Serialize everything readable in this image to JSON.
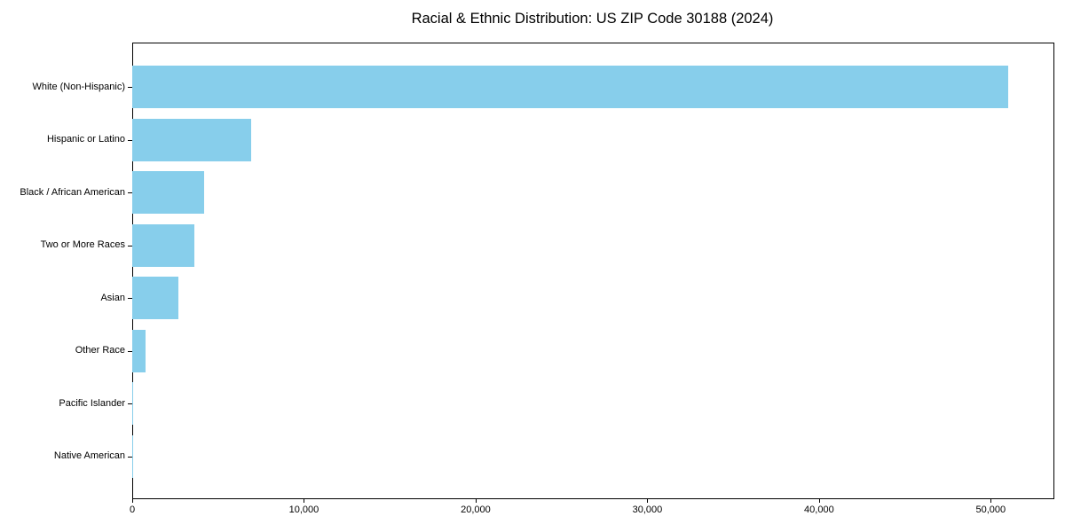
{
  "title": "Racial & Ethnic Distribution: US ZIP Code 30188 (2024)",
  "chart_data": {
    "type": "bar",
    "orientation": "horizontal",
    "title": "Racial & Ethnic Distribution: US ZIP Code 30188 (2024)",
    "categories": [
      "White (Non-Hispanic)",
      "Hispanic or Latino",
      "Black / African American",
      "Two or More Races",
      "Asian",
      "Other Race",
      "Pacific Islander",
      "Native American"
    ],
    "values": [
      51000,
      6950,
      4200,
      3600,
      2700,
      800,
      60,
      25
    ],
    "xlabel": "",
    "ylabel": "",
    "xlim": [
      0,
      53600
    ],
    "x_ticks": [
      0,
      10000,
      20000,
      30000,
      40000,
      50000
    ],
    "x_tick_labels": [
      "0",
      "10,000",
      "20,000",
      "30,000",
      "40,000",
      "50,000"
    ],
    "bar_color": "#87CEEB",
    "axis_color": "#000000",
    "background_color": "#ffffff",
    "grid": false,
    "legend": null
  }
}
